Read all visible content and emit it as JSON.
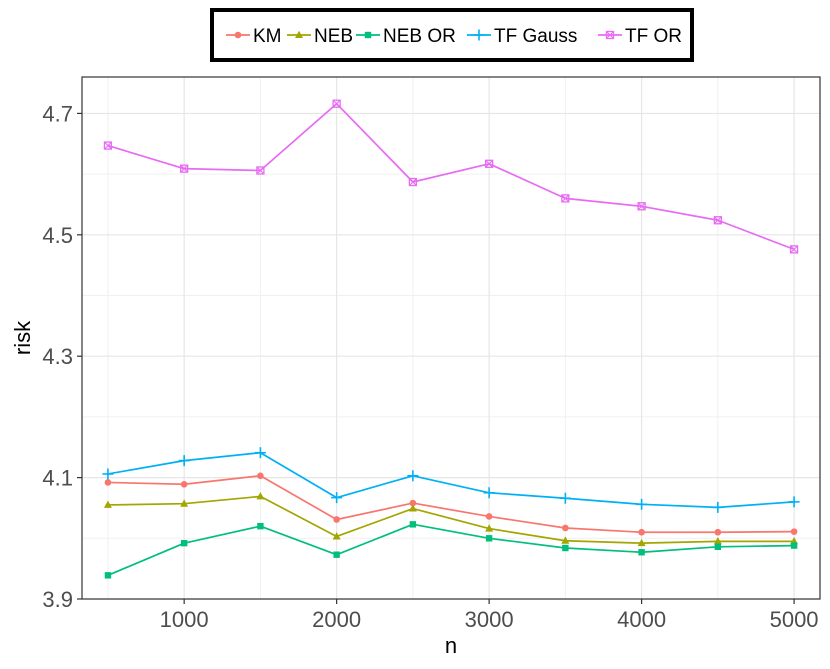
{
  "chart_data": {
    "type": "line",
    "xlabel": "n",
    "ylabel": "risk",
    "xlim": [
      330,
      5170
    ],
    "ylim": [
      3.9,
      4.76
    ],
    "x_ticks": [
      1000,
      2000,
      3000,
      4000,
      5000
    ],
    "x_tick_labels": [
      "1000",
      "2000",
      "3000",
      "4000",
      "5000"
    ],
    "y_ticks": [
      3.9,
      4.1,
      4.3,
      4.5,
      4.7
    ],
    "y_tick_labels": [
      "3.9",
      "4.1",
      "4.3",
      "4.5",
      "4.7"
    ],
    "grid": true,
    "legend_position": "top",
    "x": [
      500,
      1000,
      1500,
      2000,
      2500,
      3000,
      3500,
      4000,
      4500,
      5000
    ],
    "series": [
      {
        "name": "KM",
        "color": "#F8766D",
        "marker": "circle",
        "values": [
          4.092,
          4.089,
          4.103,
          4.031,
          4.058,
          4.036,
          4.017,
          4.01,
          4.01,
          4.011
        ]
      },
      {
        "name": "NEB",
        "color": "#A3A500",
        "marker": "triangle",
        "values": [
          4.055,
          4.057,
          4.069,
          4.003,
          4.049,
          4.016,
          3.996,
          3.992,
          3.995,
          3.995
        ]
      },
      {
        "name": "NEB OR",
        "color": "#00BF7D",
        "marker": "square",
        "values": [
          3.939,
          3.992,
          4.02,
          3.973,
          4.023,
          4.0,
          3.984,
          3.977,
          3.986,
          3.988
        ]
      },
      {
        "name": "TF Gauss",
        "color": "#00B0F6",
        "marker": "plus",
        "values": [
          4.106,
          4.128,
          4.141,
          4.067,
          4.103,
          4.075,
          4.066,
          4.056,
          4.051,
          4.06
        ]
      },
      {
        "name": "TF OR",
        "color": "#E76BF3",
        "marker": "boxcross",
        "values": [
          4.647,
          4.609,
          4.606,
          4.716,
          4.587,
          4.617,
          4.56,
          4.547,
          4.524,
          4.476
        ]
      }
    ]
  }
}
